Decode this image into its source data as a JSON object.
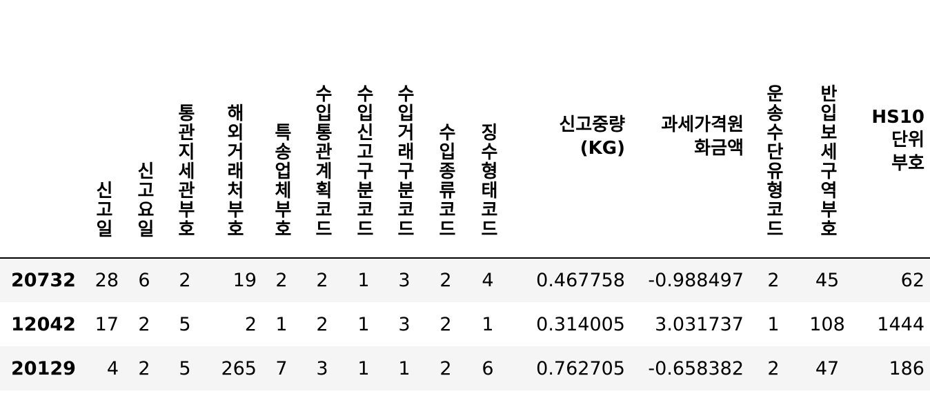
{
  "table": {
    "columns": [
      {
        "key": "c1",
        "label": "신고일",
        "orientation": "vertical"
      },
      {
        "key": "c2",
        "label": "신고요일",
        "orientation": "vertical"
      },
      {
        "key": "c3",
        "label": "통관지세관부호",
        "orientation": "vertical"
      },
      {
        "key": "c4",
        "label": "해외거래처부호",
        "orientation": "vertical"
      },
      {
        "key": "c5",
        "label": "특송업체부호",
        "orientation": "vertical"
      },
      {
        "key": "c6",
        "label": "수입통관계획코드",
        "orientation": "vertical"
      },
      {
        "key": "c7",
        "label": "수입신고구분코드",
        "orientation": "vertical"
      },
      {
        "key": "c8",
        "label": "수입거래구분코드",
        "orientation": "vertical"
      },
      {
        "key": "c9",
        "label": "수입종류코드",
        "orientation": "vertical"
      },
      {
        "key": "c10",
        "label": "징수형태코드",
        "orientation": "vertical"
      },
      {
        "key": "c11",
        "label_lines": [
          "신고중량",
          "(KG)"
        ],
        "orientation": "horizontal"
      },
      {
        "key": "c12",
        "label_lines": [
          "과세가격원",
          "화금액"
        ],
        "orientation": "horizontal"
      },
      {
        "key": "c13",
        "label": "운송수단유형코드",
        "orientation": "vertical"
      },
      {
        "key": "c14",
        "label": "반입보세구역부호",
        "orientation": "vertical"
      },
      {
        "key": "c15",
        "label_lines": [
          "HS10",
          "단위",
          "부호"
        ],
        "orientation": "horizontal"
      }
    ],
    "rows": [
      {
        "index": "20732",
        "values": [
          "28",
          "6",
          "2",
          "19",
          "2",
          "2",
          "1",
          "3",
          "2",
          "4",
          "0.467758",
          "-0.988497",
          "2",
          "45",
          "62"
        ]
      },
      {
        "index": "12042",
        "values": [
          "17",
          "2",
          "5",
          "2",
          "1",
          "2",
          "1",
          "3",
          "2",
          "1",
          "0.314005",
          "3.031737",
          "1",
          "108",
          "1444"
        ]
      },
      {
        "index": "20129",
        "values": [
          "4",
          "2",
          "5",
          "265",
          "7",
          "3",
          "1",
          "1",
          "2",
          "6",
          "0.762705",
          "-0.658382",
          "2",
          "47",
          "186"
        ]
      }
    ]
  }
}
